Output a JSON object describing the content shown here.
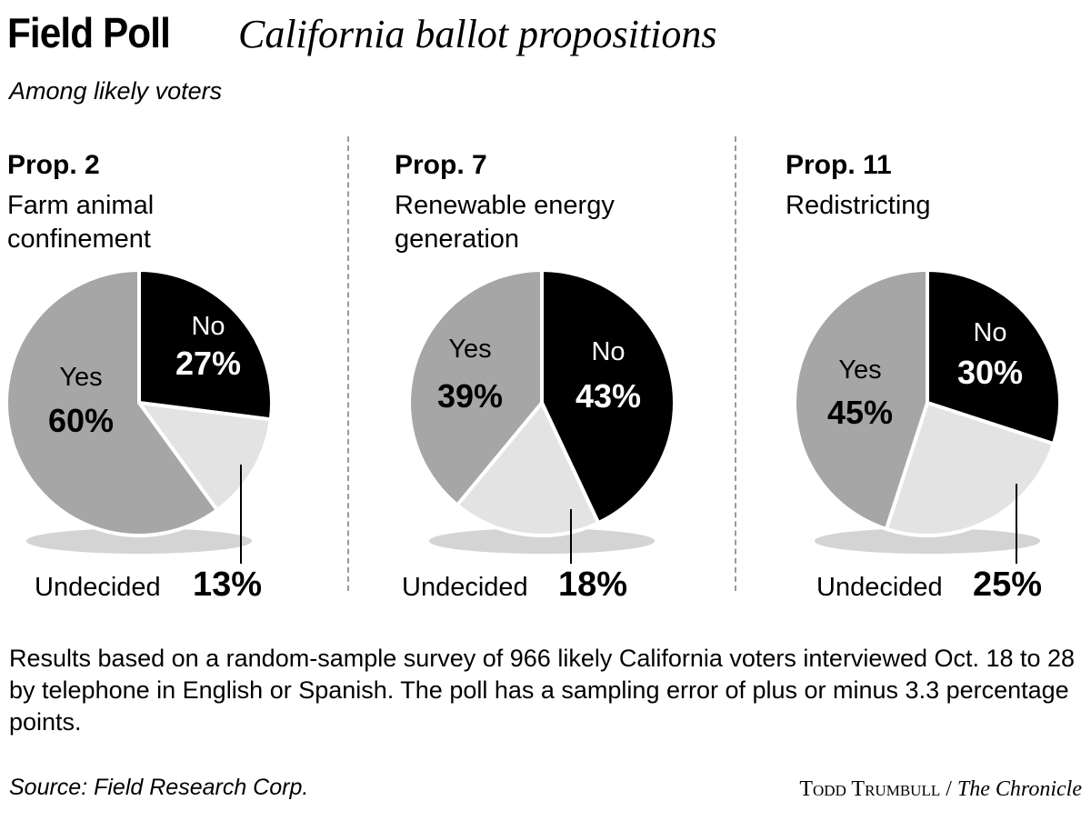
{
  "header": {
    "title_bold": "Field Poll",
    "title_italic": "California ballot propositions",
    "subtitle": "Among likely voters"
  },
  "colors": {
    "yes": "#a6a6a6",
    "no": "#000000",
    "undecided": "#e3e3e3",
    "outline": "#ffffff"
  },
  "chart_data": [
    {
      "type": "pie",
      "title": "Prop. 2",
      "subtitle": "Farm animal confinement",
      "subtitle_lines": [
        "Farm animal",
        "confinement"
      ],
      "slices": [
        {
          "label": "No",
          "value": 27,
          "display": "27%"
        },
        {
          "label": "Undecided",
          "value": 13,
          "display": "13%"
        },
        {
          "label": "Yes",
          "value": 60,
          "display": "60%"
        }
      ]
    },
    {
      "type": "pie",
      "title": "Prop. 7",
      "subtitle": "Renewable energy generation",
      "subtitle_lines": [
        "Renewable energy",
        "generation"
      ],
      "slices": [
        {
          "label": "No",
          "value": 43,
          "display": "43%"
        },
        {
          "label": "Undecided",
          "value": 18,
          "display": "18%"
        },
        {
          "label": "Yes",
          "value": 39,
          "display": "39%"
        }
      ]
    },
    {
      "type": "pie",
      "title": "Prop. 11",
      "subtitle": "Redistricting",
      "subtitle_lines": [
        "Redistricting"
      ],
      "slices": [
        {
          "label": "No",
          "value": 30,
          "display": "30%"
        },
        {
          "label": "Undecided",
          "value": 25,
          "display": "25%"
        },
        {
          "label": "Yes",
          "value": 45,
          "display": "45%"
        }
      ]
    }
  ],
  "footnote": "Results based on a random-sample survey of 966 likely California voters interviewed Oct. 18 to 28 by telephone in English or Spanish. The poll has a sampling error of plus or minus 3.3 percentage points.",
  "source": "Source: Field Research Corp.",
  "credit": {
    "author": "Todd Trumbull",
    "separator": " / ",
    "publication": "The Chronicle"
  }
}
